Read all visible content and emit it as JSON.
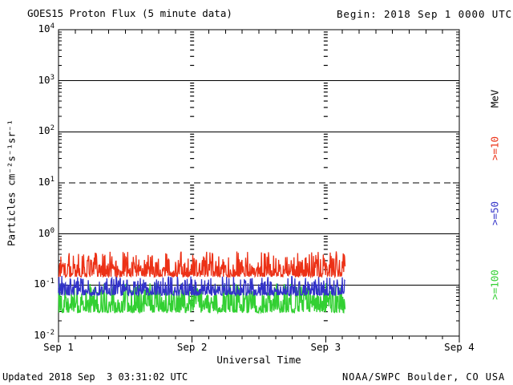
{
  "title": "GOES15 Proton Flux (5 minute data)",
  "begin_label": "Begin: 2018 Sep 1 0000 UTC",
  "axes": {
    "y_label": "Particles cm⁻²s⁻¹sr⁻¹",
    "x_label": "Universal Time"
  },
  "right_labels": {
    "units": "MeV",
    "series": [
      {
        "text": ">=10",
        "color": "#ec3116"
      },
      {
        "text": ">=50",
        "color": "#3232c8"
      },
      {
        "text": ">=100",
        "color": "#32d032"
      }
    ]
  },
  "footer": {
    "updated": "Updated 2018 Sep  3 03:31:02 UTC",
    "source": "NOAA/SWPC Boulder, CO USA"
  },
  "chart_data": {
    "type": "line",
    "title": "GOES15 Proton Flux (5 minute data)",
    "begin": "2018 Sep 1 0000 UTC",
    "x_axis": {
      "label": "Universal Time",
      "span_days": 3,
      "tick_labels": [
        "Sep 1",
        "Sep 2",
        "Sep 3",
        "Sep 4"
      ],
      "minor_tick_hours": 3,
      "vertical_gridline_days": [
        1,
        2
      ]
    },
    "y_axis": {
      "label": "Particles cm^-2 s^-1 sr^-1",
      "scale": "log",
      "min": 0.01,
      "max": 10000,
      "tick_exponents": [
        4,
        3,
        2,
        1,
        0,
        -1,
        -2
      ]
    },
    "gridlines": {
      "horizontal": [
        {
          "value": 1000,
          "exp": 3,
          "style": "solid"
        },
        {
          "value": 100,
          "exp": 2,
          "style": "solid"
        },
        {
          "value": 10,
          "exp": 1,
          "style": "dashed"
        },
        {
          "value": 1,
          "exp": 0,
          "style": "solid"
        },
        {
          "value": 0.1,
          "exp": -1,
          "style": "solid"
        }
      ]
    },
    "data_end_fraction": 0.715,
    "data_end_time": "2018 Sep 3 ~03:30 UTC",
    "cadence_minutes": 5,
    "series": [
      {
        "name": ">=10 MeV",
        "color": "#ec3116",
        "summary": {
          "typical": 0.17,
          "min": 0.12,
          "max": 0.5
        },
        "gen": {
          "seed": 1013,
          "base_log10": -0.84,
          "amp": 0.5,
          "pow": 2.2,
          "width": 1.3
        }
      },
      {
        "name": ">=50 MeV",
        "color": "#3232c8",
        "summary": {
          "typical": 0.08,
          "min": 0.055,
          "max": 0.16
        },
        "gen": {
          "seed": 2029,
          "base_log10": -1.2,
          "amp": 0.38,
          "pow": 2.4,
          "width": 1.3
        }
      },
      {
        "name": ">=100 MeV",
        "color": "#32d032",
        "summary": {
          "typical": 0.045,
          "min": 0.028,
          "max": 0.11
        },
        "gen": {
          "seed": 3047,
          "base_log10": -1.54,
          "amp": 0.58,
          "pow": 2.1,
          "width": 1.4
        }
      }
    ]
  }
}
